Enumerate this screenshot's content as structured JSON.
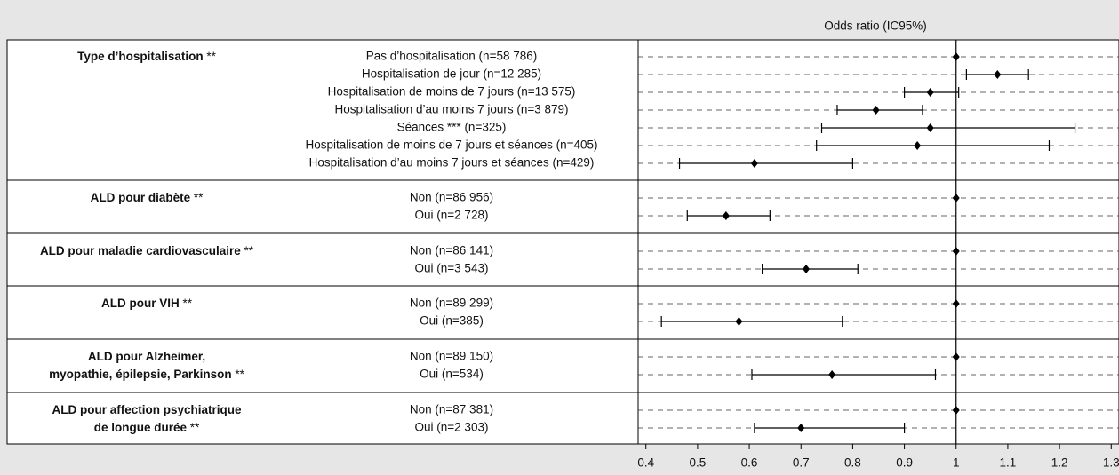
{
  "chart_data": {
    "type": "forest",
    "xlabel": "Odds ratio (IC95%)",
    "xlim": [
      0.385,
      1.315
    ],
    "xticks": [
      0.4,
      0.5,
      0.6,
      0.7,
      0.8,
      0.9,
      1,
      1.1,
      1.2,
      1.3
    ],
    "reference": 1,
    "color": "#000000",
    "groups": [
      {
        "label": [
          "Type d’hospitalisation"
        ],
        "note": "**",
        "rows": [
          {
            "label": "Pas d’hospitalisation (n=58 786)",
            "estimate": 1
          },
          {
            "label": "Hospitalisation de jour (n=12 285)",
            "estimate": 1.08,
            "lower": 1.02,
            "upper": 1.14
          },
          {
            "label": "Hospitalisation de moins de 7 jours (n=13 575)",
            "estimate": 0.95,
            "lower": 0.9,
            "upper": 1.005
          },
          {
            "label": "Hospitalisation d’au moins 7 jours (n=3 879)",
            "estimate": 0.845,
            "lower": 0.77,
            "upper": 0.935
          },
          {
            "label": "Séances *** (n=325)",
            "estimate": 0.95,
            "lower": 0.74,
            "upper": 1.23
          },
          {
            "label": "Hospitalisation de moins de 7 jours et séances (n=405)",
            "estimate": 0.925,
            "lower": 0.73,
            "upper": 1.18
          },
          {
            "label": "Hospitalisation d’au moins 7 jours et séances (n=429)",
            "estimate": 0.61,
            "lower": 0.465,
            "upper": 0.8
          }
        ]
      },
      {
        "label": [
          "ALD pour diabète"
        ],
        "note": "**",
        "rows": [
          {
            "label": "Non (n=86 956)",
            "estimate": 1
          },
          {
            "label": "Oui (n=2 728)",
            "estimate": 0.555,
            "lower": 0.48,
            "upper": 0.64
          }
        ]
      },
      {
        "label": [
          "ALD pour maladie cardiovasculaire"
        ],
        "note": "**",
        "rows": [
          {
            "label": "Non (n=86 141)",
            "estimate": 1
          },
          {
            "label": "Oui (n=3 543)",
            "estimate": 0.71,
            "lower": 0.625,
            "upper": 0.81
          }
        ]
      },
      {
        "label": [
          "ALD pour VIH"
        ],
        "note": "**",
        "rows": [
          {
            "label": "Non (n=89 299)",
            "estimate": 1
          },
          {
            "label": "Oui (n=385)",
            "estimate": 0.58,
            "lower": 0.43,
            "upper": 0.78
          }
        ]
      },
      {
        "label": [
          "ALD pour Alzheimer,",
          "myopathie, épilepsie, Parkinson"
        ],
        "note": "**",
        "rows": [
          {
            "label": "Non (n=89 150)",
            "estimate": 1
          },
          {
            "label": "Oui (n=534)",
            "estimate": 0.76,
            "lower": 0.605,
            "upper": 0.96
          }
        ]
      },
      {
        "label": [
          "ALD pour affection psychiatrique",
          "de longue durée"
        ],
        "note": "**",
        "rows": [
          {
            "label": "Non (n=87 381)",
            "estimate": 1
          },
          {
            "label": "Oui (n=2 303)",
            "estimate": 0.7,
            "lower": 0.61,
            "upper": 0.9
          }
        ]
      }
    ]
  }
}
